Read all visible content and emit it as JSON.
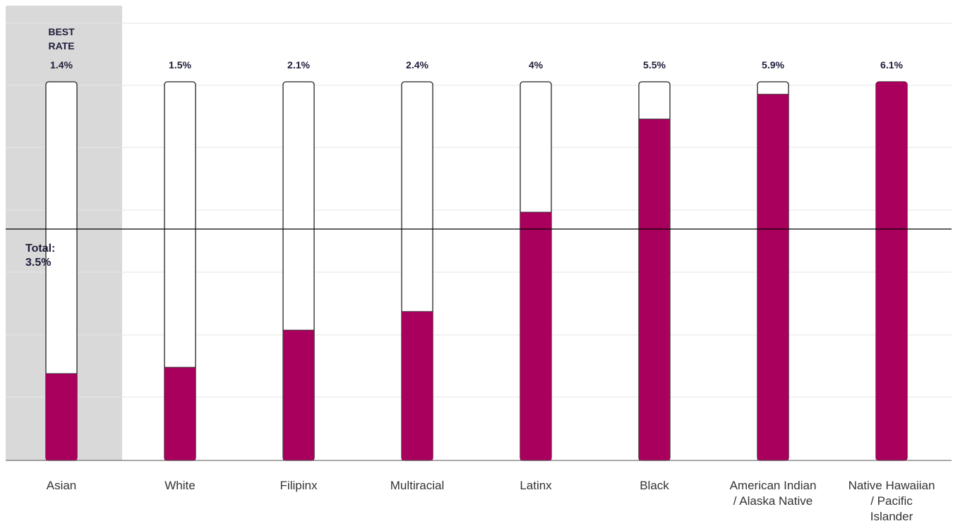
{
  "chart_data": {
    "type": "bar",
    "categories": [
      "Asian",
      "White",
      "Filipinx",
      "Multiracial",
      "Latinx",
      "Black",
      "American Indian / Alaska Native",
      "Native Hawaiian / Pacific Islander"
    ],
    "category_lines": [
      [
        "Asian"
      ],
      [
        "White"
      ],
      [
        "Filipinx"
      ],
      [
        "Multiracial"
      ],
      [
        "Latinx"
      ],
      [
        "Black"
      ],
      [
        "American Indian",
        "/ Alaska Native"
      ],
      [
        "Native Hawaiian",
        "/ Pacific",
        "Islander"
      ]
    ],
    "values": [
      1.4,
      1.5,
      2.1,
      2.4,
      4.0,
      5.5,
      5.9,
      6.1
    ],
    "value_labels": [
      "1.4%",
      "1.5%",
      "2.1%",
      "2.4%",
      "4%",
      "5.5%",
      "5.9%",
      "6.1%"
    ],
    "highlight": {
      "category": "Asian",
      "label_lines": [
        "BEST",
        "RATE"
      ]
    },
    "reference_line": {
      "value": 3.5,
      "label_lines": [
        "Total:",
        "3.5%"
      ]
    },
    "ylim": [
      0,
      6.1
    ],
    "grid": true,
    "colors": {
      "bar_fill": "#a8005c",
      "bar_empty": "#ffffff",
      "bar_outline": "#222222",
      "highlight_bg": "#d9d9d9",
      "gridline": "#e6e6e6",
      "reference_line": "#000000"
    }
  }
}
